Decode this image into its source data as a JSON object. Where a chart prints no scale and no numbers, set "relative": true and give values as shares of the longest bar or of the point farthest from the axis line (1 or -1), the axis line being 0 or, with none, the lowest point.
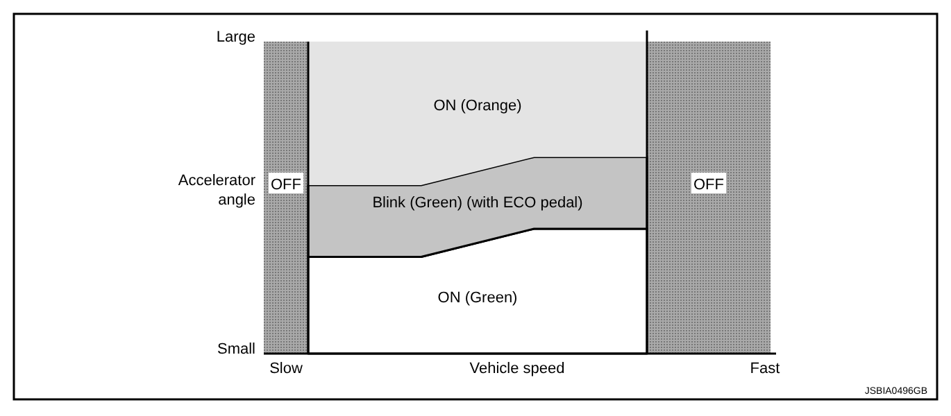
{
  "chart_data": {
    "type": "area",
    "stacked": true,
    "relative": true,
    "xlabel": "Vehicle speed",
    "ylabel": "Accelerator angle",
    "categories": [
      null,
      null,
      null,
      null
    ],
    "series": [
      {
        "name": "ON (Green)",
        "color": "#ffffff",
        "values": [
          0.31,
          0.31,
          0.4,
          0.4
        ]
      },
      {
        "name": "Blink (Green) (with ECO pedal)",
        "color": "#c4c4c4",
        "values": [
          0.23,
          0.23,
          0.23,
          0.23
        ]
      },
      {
        "name": "ON (Orange)",
        "color": "#e4e4e4",
        "values": [
          0.46,
          0.46,
          0.37,
          0.37
        ]
      }
    ],
    "annotations": [
      "Slow",
      "Fast",
      "Small",
      "Large",
      "OFF",
      "OFF",
      "JSBIA0496GB"
    ]
  }
}
